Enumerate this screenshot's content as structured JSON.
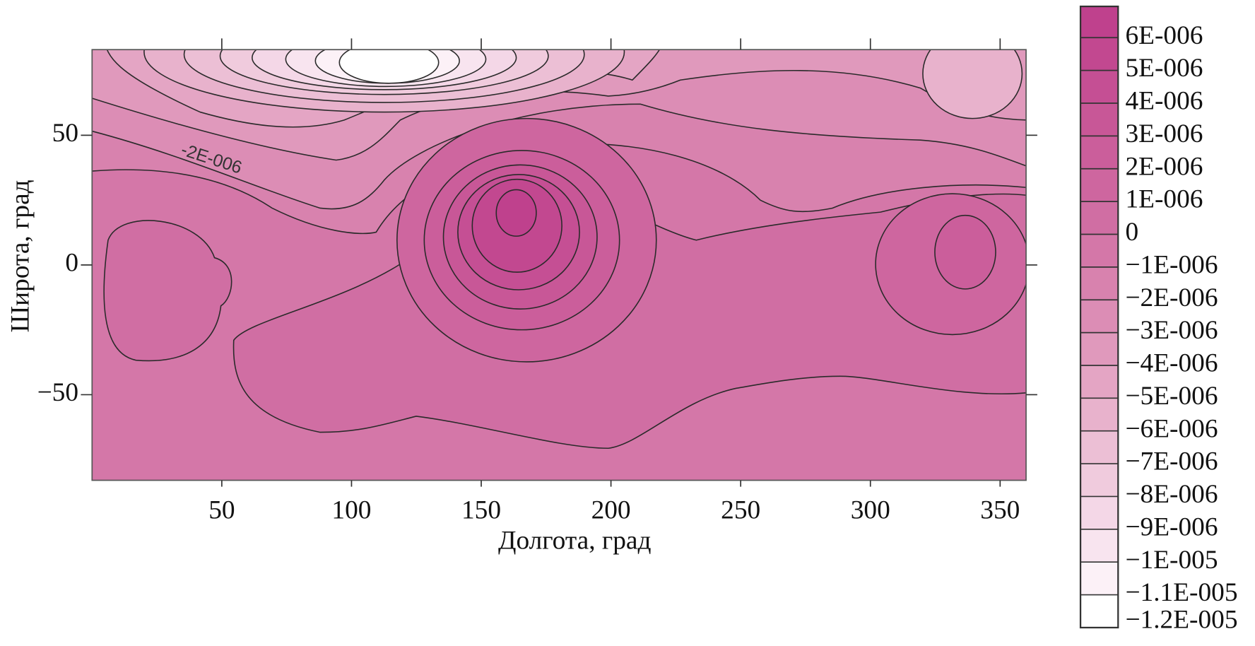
{
  "chart_data": {
    "type": "contour",
    "x_label": "Долгота, град",
    "y_label": "Широта, град",
    "xlim": [
      0,
      360
    ],
    "ylim": [
      -83,
      83
    ],
    "xticks": [
      50,
      100,
      150,
      200,
      250,
      300,
      350
    ],
    "yticks": [
      {
        "value": -50,
        "label": "−50"
      },
      0,
      50
    ],
    "annotation": "-2E-006",
    "levels": [
      {
        "value": 6e-06,
        "label": "6E-006"
      },
      {
        "value": 5e-06,
        "label": "5E-006"
      },
      {
        "value": 4e-06,
        "label": "4E-006"
      },
      {
        "value": 3e-06,
        "label": "3E-006"
      },
      {
        "value": 2e-06,
        "label": "2E-006"
      },
      {
        "value": 1e-06,
        "label": "1E-006"
      },
      0,
      {
        "value": -1e-06,
        "label": "−1E-006"
      },
      {
        "value": -2e-06,
        "label": "−2E-006"
      },
      {
        "value": -3e-06,
        "label": "−3E-006"
      },
      {
        "value": -4e-06,
        "label": "−4E-006"
      },
      {
        "value": -5e-06,
        "label": "−5E-006"
      },
      {
        "value": -6e-06,
        "label": "−6E-006"
      },
      {
        "value": -7e-06,
        "label": "−7E-006"
      },
      {
        "value": -8e-06,
        "label": "−8E-006"
      },
      {
        "value": -9e-06,
        "label": "−9E-006"
      },
      {
        "value": -1e-05,
        "label": "−1E-005"
      },
      {
        "value": -1.1e-05,
        "label": "−1.1E-005"
      },
      {
        "value": -1.2e-05,
        "label": "−1.2E-005"
      }
    ],
    "colors": [
      "#bf418d",
      "#c24890",
      "#c54f94",
      "#c85797",
      "#cb5e9b",
      "#ce669f",
      "#d06ea3",
      "#d477a8",
      "#d882ae",
      "#dc8db5",
      "#e099bc",
      "#e4a5c4",
      "#e8b2cc",
      "#ecbfd5",
      "#f0cbdd",
      "#f4d7e7",
      "#f8e4ef",
      "#fcf1f7",
      "#ffffff"
    ]
  }
}
